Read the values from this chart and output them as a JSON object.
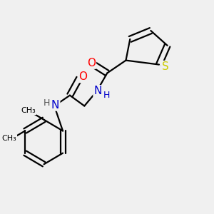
{
  "background_color": "#f0f0f0",
  "atom_colors": {
    "C": "#000000",
    "N": "#0000cc",
    "O": "#ff0000",
    "S": "#cccc00",
    "H": "#444444"
  },
  "bond_color": "#000000",
  "bond_width": 1.6,
  "figsize": [
    3.0,
    3.0
  ],
  "dpi": 100
}
